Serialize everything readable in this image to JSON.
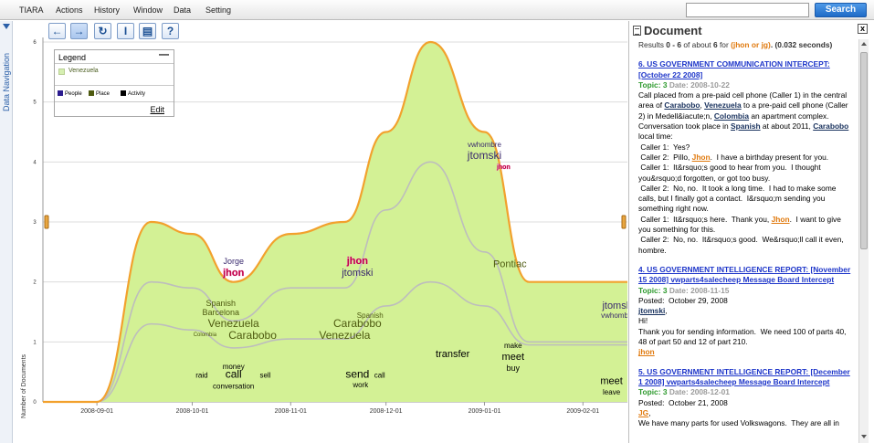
{
  "menubar": {
    "items": [
      "TIARA",
      "Actions",
      "History",
      "Window",
      "Data",
      "Setting"
    ],
    "search_value": "",
    "search_label": "Search"
  },
  "datanav": {
    "label": "Data Navigation"
  },
  "toolbar": {
    "buttons": [
      {
        "name": "back-button",
        "glyph": "←"
      },
      {
        "name": "forward-button",
        "glyph": "→"
      },
      {
        "name": "refresh-button",
        "glyph": "↻"
      },
      {
        "name": "text-cursor-button",
        "glyph": "I"
      },
      {
        "name": "document-button",
        "glyph": "▤"
      },
      {
        "name": "help-button",
        "glyph": "?"
      }
    ]
  },
  "legend": {
    "title": "Legend",
    "minimize": "—",
    "main_item": "Venezuela",
    "categories": [
      {
        "label": "People",
        "color": "#2b1b8f"
      },
      {
        "label": "Place",
        "color": "#4e5a10"
      },
      {
        "label": "Activity",
        "color": "#000000"
      }
    ],
    "edit_label": "Edit"
  },
  "chart_data": {
    "type": "area",
    "ylabel": "Number of Documents",
    "ylim": [
      0,
      6
    ],
    "yticks": [
      0,
      1,
      2,
      3,
      4,
      5,
      6
    ],
    "x": [
      "2008-08-15",
      "2008-09-01",
      "2008-09-18",
      "2008-10-01",
      "2008-10-14",
      "2008-11-01",
      "2008-11-18",
      "2008-12-01",
      "2008-12-15",
      "2009-01-01",
      "2009-01-15",
      "2009-02-01",
      "2009-02-15"
    ],
    "xtick_labels": [
      "2008-09-01",
      "2008-10-01",
      "2008-11-01",
      "2008-12-01",
      "2009-01-01",
      "2009-02-01"
    ],
    "series": [
      {
        "values": [
          0,
          0,
          3,
          2.8,
          2,
          2.8,
          3,
          4.5,
          6,
          4.5,
          2,
          2,
          2
        ]
      }
    ],
    "layer_boundaries": [
      [
        0,
        0,
        2,
        1.9,
        1.35,
        1.9,
        1.9,
        3.2,
        4,
        2.5,
        1,
        1,
        1
      ],
      [
        0,
        0,
        1.3,
        1.2,
        0.9,
        1.05,
        1.05,
        1.6,
        2,
        1.6,
        0.95,
        0.95,
        0.95
      ]
    ],
    "theme_words": [
      {
        "text": "Jorge",
        "x": "2008-10-14",
        "y": 2.3,
        "color": "#3a2a6e",
        "size": 9
      },
      {
        "text": "jhon",
        "x": "2008-10-14",
        "y": 2.1,
        "color": "#c0004a",
        "size": 11,
        "bold": true
      },
      {
        "text": "Spanish",
        "x": "2008-10-10",
        "y": 1.6,
        "color": "#4e5a10",
        "size": 9
      },
      {
        "text": "Barcelona",
        "x": "2008-10-10",
        "y": 1.45,
        "color": "#4e5a10",
        "size": 9
      },
      {
        "text": "Venezuela",
        "x": "2008-10-14",
        "y": 1.25,
        "color": "#4e5a10",
        "size": 12
      },
      {
        "text": "Colombia",
        "x": "2008-10-05",
        "y": 1.1,
        "color": "#4e5a10",
        "size": 6
      },
      {
        "text": "Carabobo",
        "x": "2008-10-20",
        "y": 1.05,
        "color": "#4e5a10",
        "size": 12
      },
      {
        "text": "money",
        "x": "2008-10-14",
        "y": 0.55,
        "color": "#000",
        "size": 8
      },
      {
        "text": "raid",
        "x": "2008-10-04",
        "y": 0.4,
        "color": "#000",
        "size": 8
      },
      {
        "text": "call",
        "x": "2008-10-14",
        "y": 0.4,
        "color": "#000",
        "size": 12
      },
      {
        "text": "sell",
        "x": "2008-10-24",
        "y": 0.4,
        "color": "#000",
        "size": 8
      },
      {
        "text": "conversation",
        "x": "2008-10-14",
        "y": 0.22,
        "color": "#000",
        "size": 8
      },
      {
        "text": "jhon",
        "x": "2008-11-22",
        "y": 2.3,
        "color": "#c0004a",
        "size": 11,
        "bold": true
      },
      {
        "text": "jtomski",
        "x": "2008-11-22",
        "y": 2.1,
        "color": "#3a2a6e",
        "size": 11
      },
      {
        "text": "Spanish",
        "x": "2008-11-26",
        "y": 1.4,
        "color": "#4e5a10",
        "size": 8
      },
      {
        "text": "Carabobo",
        "x": "2008-11-22",
        "y": 1.25,
        "color": "#4e5a10",
        "size": 12
      },
      {
        "text": "Venezuela",
        "x": "2008-11-18",
        "y": 1.05,
        "color": "#4e5a10",
        "size": 12
      },
      {
        "text": "send",
        "x": "2008-11-22",
        "y": 0.4,
        "color": "#000",
        "size": 12
      },
      {
        "text": "call",
        "x": "2008-11-29",
        "y": 0.4,
        "color": "#000",
        "size": 8
      },
      {
        "text": "work",
        "x": "2008-11-23",
        "y": 0.24,
        "color": "#000",
        "size": 8
      },
      {
        "text": "vwhombre",
        "x": "2009-01-01",
        "y": 4.25,
        "color": "#3a2a6e",
        "size": 8
      },
      {
        "text": "jtomski",
        "x": "2009-01-01",
        "y": 4.05,
        "color": "#3a2a6e",
        "size": 12
      },
      {
        "text": "jhon",
        "x": "2009-01-07",
        "y": 3.88,
        "color": "#c0004a",
        "size": 7,
        "bold": true
      },
      {
        "text": "Pontiac",
        "x": "2009-01-09",
        "y": 2.25,
        "color": "#4e5a10",
        "size": 11
      },
      {
        "text": "transfer",
        "x": "2008-12-22",
        "y": 0.75,
        "color": "#000",
        "size": 11
      },
      {
        "text": "make",
        "x": "2009-01-10",
        "y": 0.9,
        "color": "#000",
        "size": 8
      },
      {
        "text": "meet",
        "x": "2009-01-10",
        "y": 0.7,
        "color": "#000",
        "size": 11
      },
      {
        "text": "buy",
        "x": "2009-01-10",
        "y": 0.52,
        "color": "#000",
        "size": 9
      },
      {
        "text": "jtomski",
        "x": "2009-02-12",
        "y": 1.55,
        "color": "#3a2a6e",
        "size": 11
      },
      {
        "text": "vwhombre",
        "x": "2009-02-12",
        "y": 1.4,
        "color": "#3a2a6e",
        "size": 8
      },
      {
        "text": "meet",
        "x": "2009-02-10",
        "y": 0.3,
        "color": "#000",
        "size": 11
      },
      {
        "text": "leave",
        "x": "2009-02-10",
        "y": 0.12,
        "color": "#000",
        "size": 8
      }
    ],
    "colors": {
      "fill": "#d3f195",
      "edge": "#f2a12d",
      "inner": "#bdbdbd"
    }
  },
  "document": {
    "title": "Document",
    "close": "x",
    "results": {
      "prefix": "Results ",
      "range": "0 - 6",
      "mid": " of about ",
      "count": "6",
      "for": " for ",
      "query": "(jhon or jg)",
      "time": ". (0.032 seconds)"
    },
    "entries": [
      {
        "title": "6.      US GOVERNMENT COMMUNICATION INTERCEPT:  [October 22 2008]",
        "topic_label": "Topic: 3",
        "date_label": "Date: 2008-10-22",
        "body": [
          [
            {
              "t": "Call placed from a pre-paid cell phone (Caller 1) in the central area of "
            },
            {
              "t": "Carabobo",
              "c": "ent"
            },
            {
              "t": ", "
            },
            {
              "t": "Venezuela",
              "c": "ent"
            },
            {
              "t": " to a pre-paid cell phone (Caller 2) in Medell&iacute;n, "
            },
            {
              "t": "Colombia",
              "c": "ent"
            },
            {
              "t": " an apartment complex. Conversation took place in "
            },
            {
              "t": "Spanish",
              "c": "ent"
            },
            {
              "t": " at about 2011, "
            },
            {
              "t": "Carabobo",
              "c": "ent"
            },
            {
              "t": " local time:"
            }
          ],
          [
            {
              "t": " Caller 1:  Yes?"
            }
          ],
          [
            {
              "t": " Caller 2:  Pillo, "
            },
            {
              "t": "Jhon",
              "c": "q"
            },
            {
              "t": ".  I have a birthday present for you."
            }
          ],
          [
            {
              "t": " Caller 1:  It&rsquo;s good to hear from you.  I thought you&rsquo;d forgotten, or got too busy."
            }
          ],
          [
            {
              "t": " Caller 2:  No, no.  It took a long time.  I had to make some calls, but I finally got a contact.  I&rsquo;m sending you something right now."
            }
          ],
          [
            {
              "t": " Caller 1:  It&rsquo;s here.  Thank you, "
            },
            {
              "t": "Jhon",
              "c": "q"
            },
            {
              "t": ".  I want to give you something for this."
            }
          ],
          [
            {
              "t": " Caller 2:  No, no.  It&rsquo;s good.  We&rsquo;ll call it even, hombre."
            }
          ]
        ]
      },
      {
        "title": "4.      US GOVERNMENT INTELLIGENCE REPORT:  [November 15 2008] vwparts4salecheep Message Board Intercept",
        "topic_label": "Topic: 3",
        "date_label": "Date: 2008-11-15",
        "body": [
          [
            {
              "t": "Posted:  October 29, 2008"
            }
          ],
          [
            {
              "t": "jtomski",
              "c": "ent"
            },
            {
              "t": ","
            }
          ],
          [
            {
              "t": "Hi!"
            }
          ],
          [
            {
              "t": "Thank you for sending information.  We need 100 of parts 40, 48 of part 50 and 12 of part 210."
            }
          ],
          [
            {
              "t": "jhon",
              "c": "q"
            }
          ]
        ]
      },
      {
        "title": "5.      US GOVERNMENT INTELLIGENCE REPORT:  [December 1 2008] vwparts4salecheep Message Board Intercept",
        "topic_label": "Topic: 3",
        "date_label": "Date: 2008-12-01",
        "body": [
          [
            {
              "t": "Posted:  October 21, 2008"
            }
          ],
          [
            {
              "t": "JG",
              "c": "q"
            },
            {
              "t": ","
            }
          ],
          [
            {
              "t": "We have many parts for used Volkswagons.  They are all in"
            }
          ]
        ]
      }
    ]
  }
}
